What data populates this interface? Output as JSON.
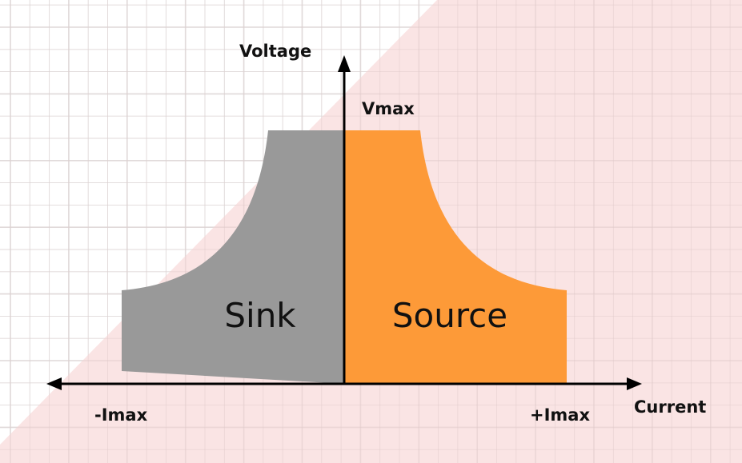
{
  "diagram": {
    "y_axis_label": "Voltage",
    "x_axis_label": "Current",
    "vmax_label": "Vmax",
    "neg_imax_label": "-Imax",
    "pos_imax_label": "+Imax",
    "sink_label": "Sink",
    "source_label": "Source"
  },
  "colors": {
    "sink": "#999999",
    "source": "#fd9a38",
    "region": "#f9dfdf",
    "grid": "#e6e6e6",
    "axis": "#000000"
  }
}
